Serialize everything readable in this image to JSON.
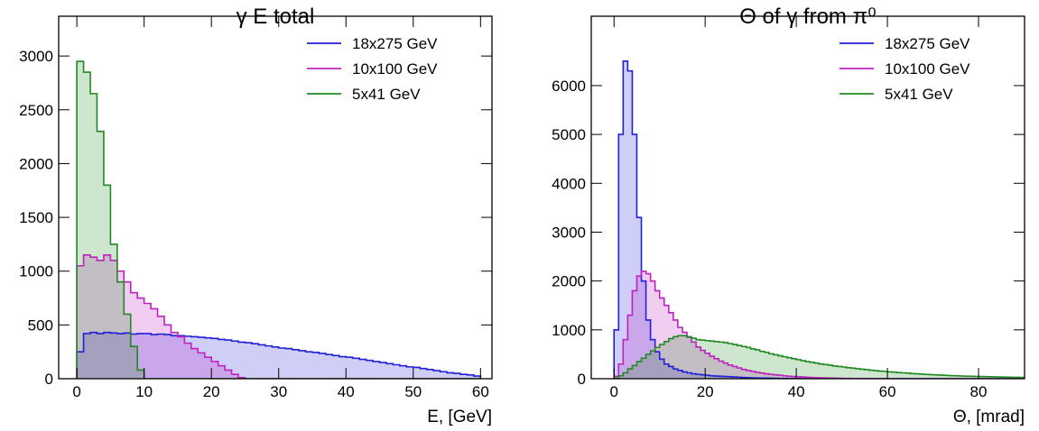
{
  "chart_data": [
    {
      "type": "histogram",
      "title": "γ E total",
      "xlabel": "E, [GeV]",
      "xlim": [
        -2.7,
        61.7
      ],
      "ylim": [
        0,
        3370
      ],
      "xticks": [
        0,
        10,
        20,
        30,
        40,
        50,
        60
      ],
      "yticks": [
        0,
        500,
        1000,
        1500,
        2000,
        2500,
        3000
      ],
      "legend": "upper right",
      "bins": [
        0,
        1,
        2,
        3,
        4,
        5,
        6,
        7,
        8,
        9,
        10,
        11,
        12,
        13,
        14,
        15,
        16,
        17,
        18,
        19,
        20,
        21,
        22,
        23,
        24,
        25,
        26,
        27,
        28,
        29,
        30,
        31,
        32,
        33,
        34,
        35,
        36,
        37,
        38,
        39,
        40,
        41,
        42,
        43,
        44,
        45,
        46,
        47,
        48,
        49,
        50,
        51,
        52,
        53,
        54,
        55,
        56,
        57,
        58,
        59,
        60
      ],
      "series": [
        {
          "name": "18x275 GeV",
          "color": "#2020d8",
          "values": [
            250,
            420,
            430,
            420,
            430,
            425,
            420,
            425,
            415,
            420,
            420,
            410,
            415,
            410,
            400,
            400,
            395,
            390,
            385,
            380,
            375,
            365,
            360,
            350,
            340,
            335,
            325,
            315,
            305,
            295,
            285,
            280,
            270,
            260,
            250,
            245,
            235,
            225,
            215,
            205,
            200,
            190,
            180,
            170,
            160,
            150,
            140,
            130,
            120,
            110,
            105,
            95,
            85,
            75,
            65,
            55,
            50,
            40,
            35,
            25
          ]
        },
        {
          "name": "10x100 GeV",
          "color": "#c020c0",
          "values": [
            1050,
            1150,
            1130,
            1100,
            1150,
            1100,
            1000,
            900,
            800,
            750,
            700,
            650,
            580,
            500,
            430,
            390,
            330,
            280,
            240,
            200,
            160,
            120,
            80,
            40,
            10,
            0,
            0,
            0,
            0,
            0,
            0,
            0,
            0,
            0,
            0,
            0,
            0,
            0,
            0,
            0,
            0,
            0,
            0,
            0,
            0,
            0,
            0,
            0,
            0,
            0,
            0,
            0,
            0,
            0,
            0,
            0,
            0,
            0,
            0,
            0
          ]
        },
        {
          "name": "5x41 GeV",
          "color": "#208a20",
          "values": [
            2950,
            2850,
            2650,
            2300,
            1800,
            1250,
            900,
            600,
            300,
            80,
            0,
            0,
            0,
            0,
            0,
            0,
            0,
            0,
            0,
            0,
            0,
            0,
            0,
            0,
            0,
            0,
            0,
            0,
            0,
            0,
            0,
            0,
            0,
            0,
            0,
            0,
            0,
            0,
            0,
            0,
            0,
            0,
            0,
            0,
            0,
            0,
            0,
            0,
            0,
            0,
            0,
            0,
            0,
            0,
            0,
            0,
            0,
            0,
            0,
            0
          ]
        }
      ]
    },
    {
      "type": "histogram",
      "title": "Θ of γ from π⁰",
      "xlabel": "Θ, [mrad]",
      "xlim": [
        -5,
        90.1
      ],
      "ylim": [
        0,
        7420
      ],
      "xticks": [
        0,
        20,
        40,
        60,
        80
      ],
      "yticks": [
        0,
        1000,
        2000,
        3000,
        4000,
        5000,
        6000
      ],
      "legend": "upper right",
      "bins": [
        0,
        1,
        2,
        3,
        4,
        5,
        6,
        7,
        8,
        9,
        10,
        11,
        12,
        13,
        14,
        15,
        16,
        17,
        18,
        19,
        20,
        21,
        22,
        23,
        24,
        25,
        26,
        27,
        28,
        29,
        30,
        31,
        32,
        33,
        34,
        35,
        36,
        37,
        38,
        39,
        40,
        41,
        42,
        43,
        44,
        45,
        46,
        47,
        48,
        49,
        50,
        51,
        52,
        53,
        54,
        55,
        56,
        57,
        58,
        59,
        60,
        61,
        62,
        63,
        64,
        65,
        66,
        67,
        68,
        69,
        70,
        71,
        72,
        73,
        74,
        75,
        76,
        77,
        78,
        79,
        80,
        81,
        82,
        83,
        84,
        85,
        86,
        87,
        88,
        89,
        90
      ],
      "series": [
        {
          "name": "18x275 GeV",
          "color": "#2020d8",
          "values": [
            1000,
            5000,
            6500,
            6300,
            5000,
            3300,
            2000,
            1200,
            800,
            550,
            400,
            300,
            250,
            200,
            170,
            140,
            120,
            100,
            90,
            80,
            70,
            60,
            55,
            50,
            45,
            40,
            35,
            30,
            25,
            20,
            18,
            16,
            14,
            12,
            10,
            8,
            6,
            5,
            4,
            3,
            2,
            2,
            1,
            1,
            1,
            0,
            0,
            0,
            0,
            0,
            0,
            0,
            0,
            0,
            0,
            0,
            0,
            0,
            0,
            0,
            0,
            0,
            0,
            0,
            0,
            0,
            0,
            0,
            0,
            0,
            0,
            0,
            0,
            0,
            0,
            0,
            0,
            0,
            0,
            0,
            0,
            0,
            0,
            0,
            0,
            0,
            0,
            0,
            0,
            0
          ]
        },
        {
          "name": "10x100 GeV",
          "color": "#c020c0",
          "values": [
            50,
            300,
            800,
            1300,
            1800,
            2100,
            2200,
            2150,
            2000,
            1800,
            1650,
            1500,
            1350,
            1200,
            1050,
            950,
            850,
            750,
            650,
            580,
            520,
            460,
            410,
            360,
            320,
            280,
            250,
            220,
            190,
            170,
            150,
            130,
            115,
            100,
            90,
            80,
            70,
            60,
            50,
            45,
            40,
            35,
            30,
            25,
            20,
            18,
            15,
            12,
            10,
            8,
            6,
            5,
            4,
            3,
            3,
            2,
            2,
            1,
            1,
            1,
            0,
            0,
            0,
            0,
            0,
            0,
            0,
            0,
            0,
            0,
            0,
            0,
            0,
            0,
            0,
            0,
            0,
            0,
            0,
            0,
            0,
            0,
            0,
            0,
            0,
            0,
            0,
            0,
            0,
            0
          ]
        },
        {
          "name": "5x41 GeV",
          "color": "#208a20",
          "values": [
            10,
            60,
            120,
            200,
            270,
            350,
            420,
            500,
            570,
            640,
            700,
            760,
            820,
            860,
            880,
            880,
            860,
            830,
            800,
            790,
            780,
            770,
            760,
            750,
            740,
            720,
            700,
            680,
            660,
            640,
            610,
            590,
            560,
            540,
            510,
            490,
            470,
            450,
            430,
            410,
            390,
            370,
            350,
            335,
            320,
            300,
            290,
            275,
            260,
            250,
            240,
            225,
            215,
            205,
            195,
            185,
            175,
            165,
            155,
            150,
            140,
            135,
            125,
            120,
            115,
            105,
            100,
            95,
            90,
            85,
            80,
            75,
            70,
            65,
            62,
            58,
            55,
            52,
            50,
            47,
            45,
            42,
            40,
            38,
            36,
            34,
            32,
            30,
            28,
            26
          ]
        }
      ]
    }
  ]
}
